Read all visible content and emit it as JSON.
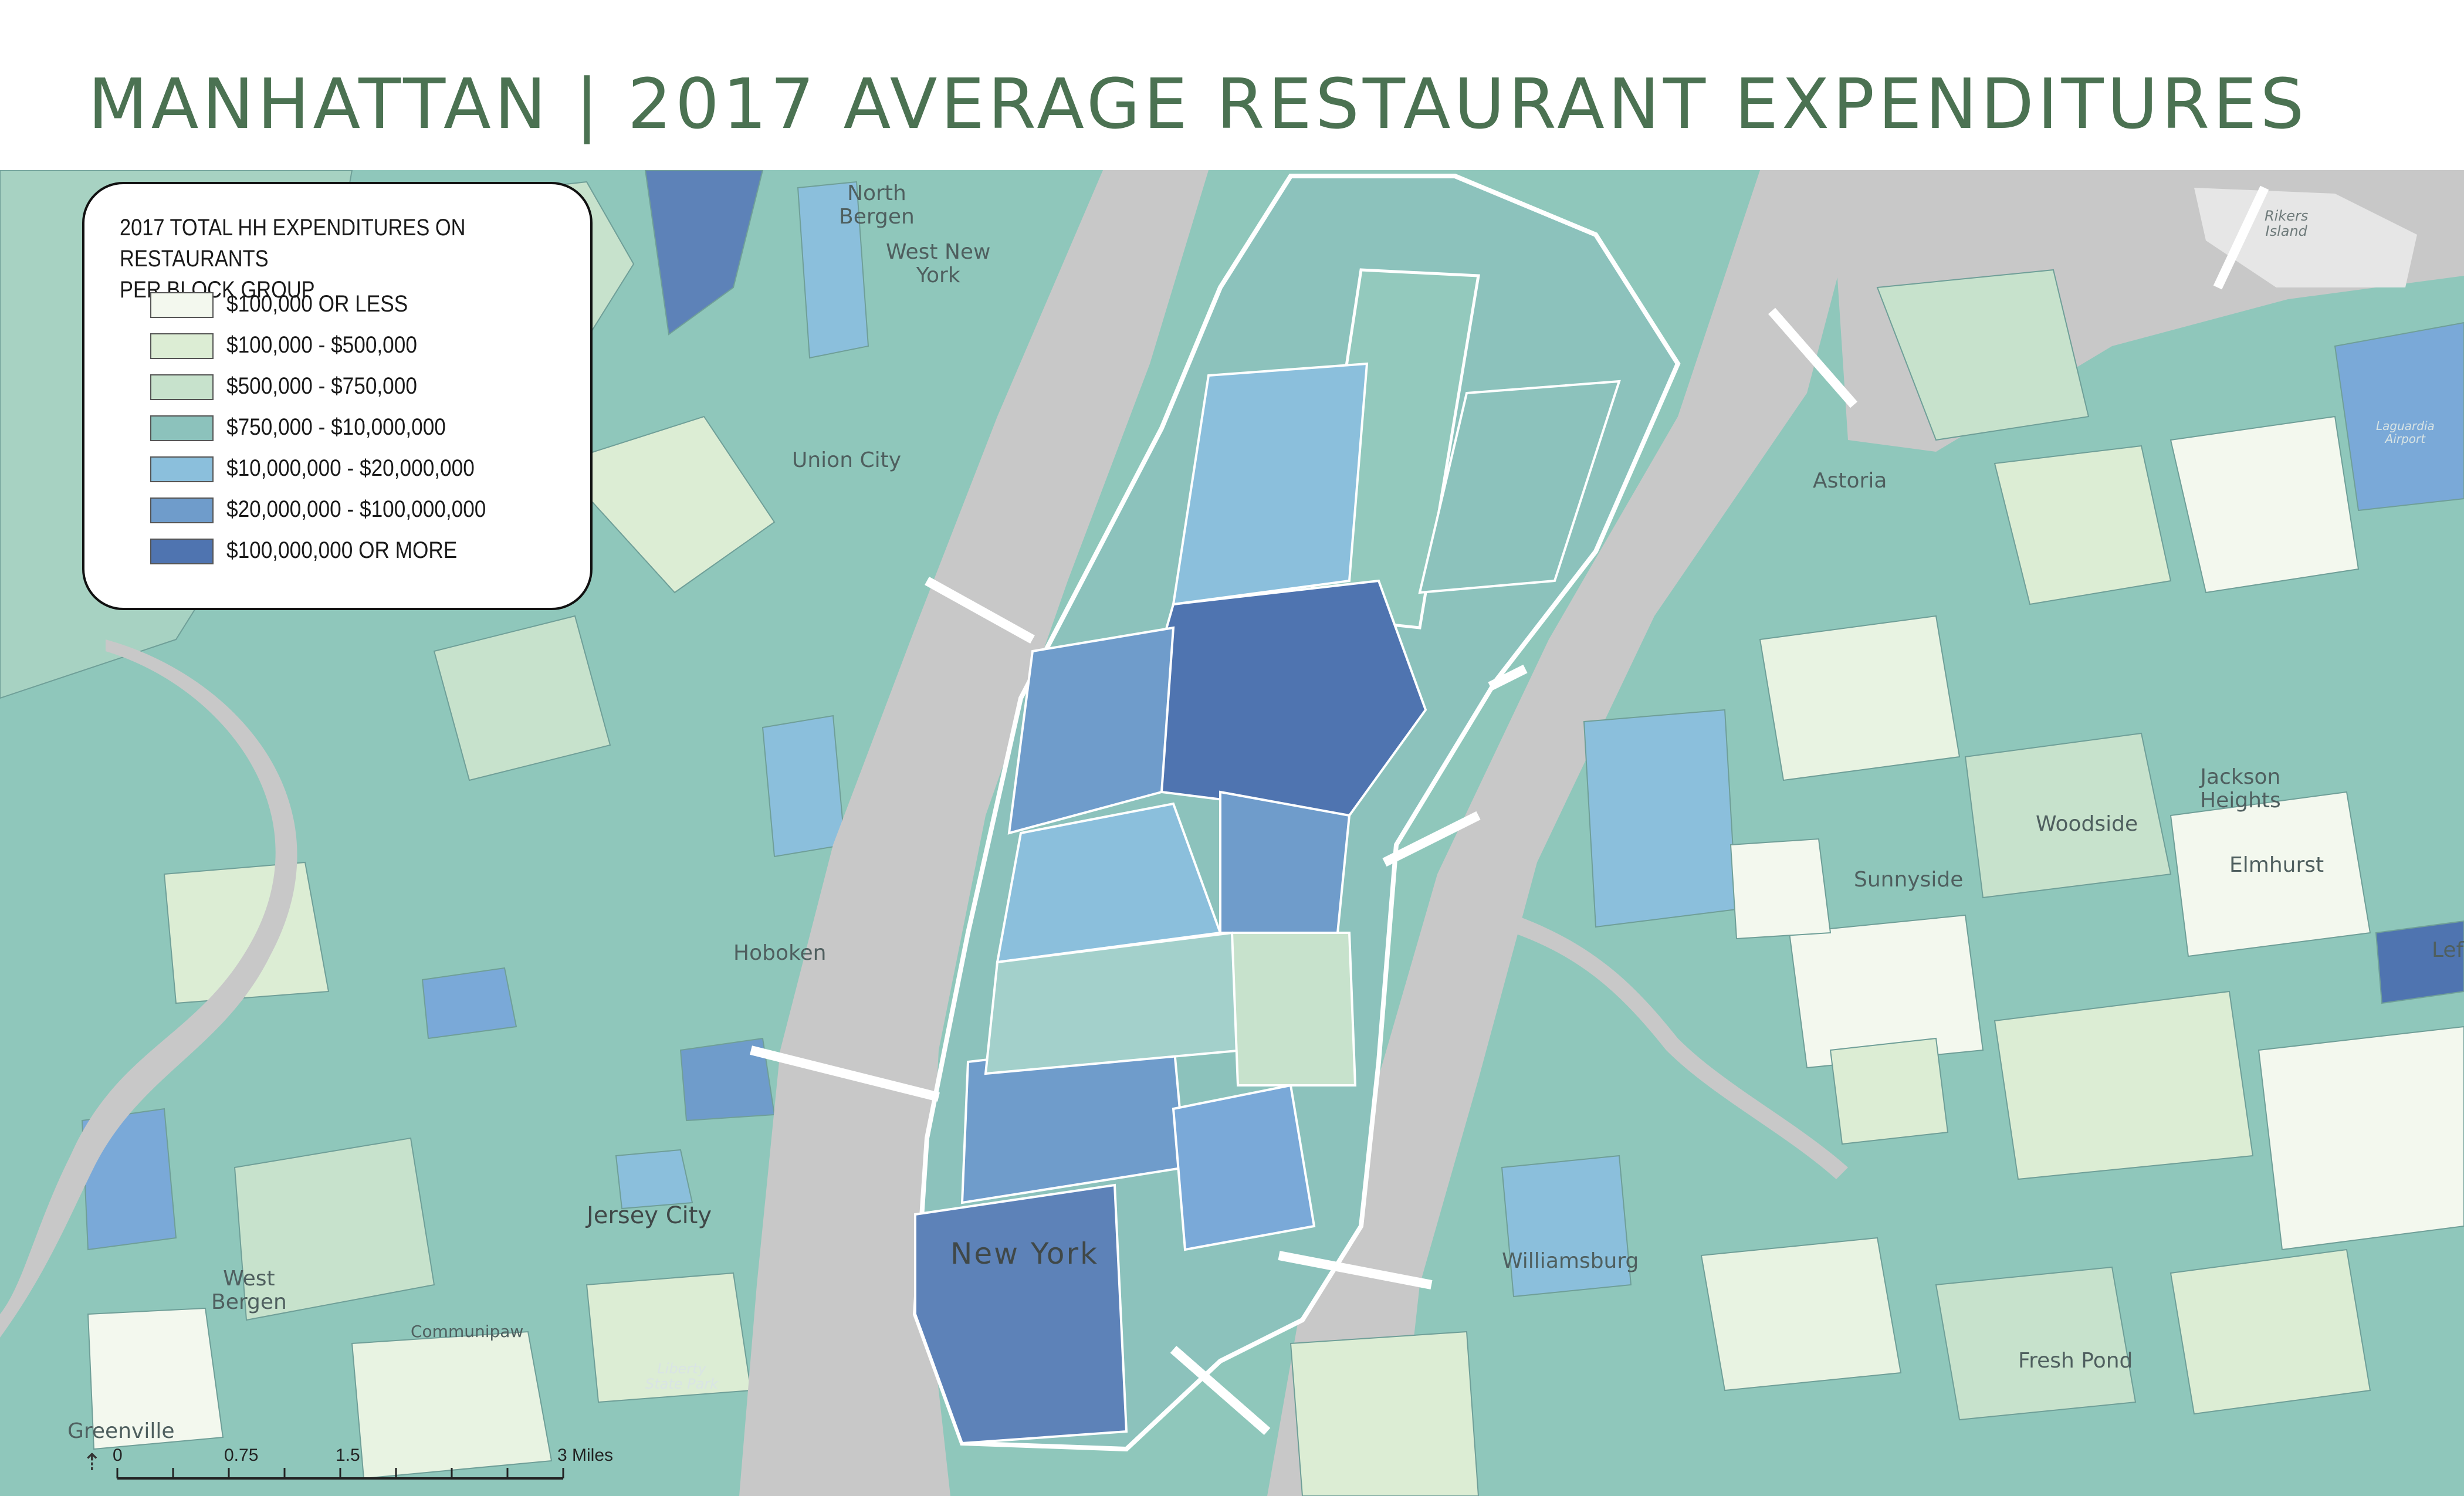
{
  "title": "MANHATTAN | 2017 AVERAGE RESTAURANT EXPENDITURES",
  "legend": {
    "title_line1": "2017 TOTAL HH EXPENDITURES ON RESTAURANTS",
    "title_line2": "PER BLOCK GROUP",
    "classes": [
      {
        "label": "$100,000 OR LESS",
        "color": "#f3f8ee"
      },
      {
        "label": "$100,000 - $500,000",
        "color": "#dcedd4"
      },
      {
        "label": "$500,000 - $750,000",
        "color": "#c7e2cc"
      },
      {
        "label": "$750,000 - $10,000,000",
        "color": "#8cc2bc"
      },
      {
        "label": "$10,000,000 - $20,000,000",
        "color": "#8bbfdc"
      },
      {
        "label": "$20,000,000 - $100,000,000",
        "color": "#6f9ccb"
      },
      {
        "label": "$100,000,000 OR MORE",
        "color": "#4f74b0"
      }
    ]
  },
  "places": {
    "north_bergen": "North\nBergen",
    "west_new_york": "West New\nYork",
    "union_city": "Union City",
    "hoboken": "Hoboken",
    "jersey_city": "Jersey City",
    "west_bergen": "West\nBergen",
    "communipaw": "Communipaw",
    "liberty_state_park": "Liberty\nState Park",
    "greenville": "Greenville",
    "new_york": "New York",
    "astoria": "Astoria",
    "sunnyside": "Sunnyside",
    "woodside": "Woodside",
    "jackson_heights": "Jackson\nHeights",
    "elmhurst": "Elmhurst",
    "williamsburg": "Williamsburg",
    "fresh_pond": "Fresh Pond",
    "rikers_island": "Rikers\nIsland",
    "laguardia_airport": "Laguardia\nAirport",
    "lef": "Lef"
  },
  "scalebar": {
    "labels": [
      "0",
      "0.75",
      "1.5",
      "3 Miles"
    ],
    "values": [
      0,
      0.75,
      1.5,
      3
    ]
  },
  "colors": {
    "water": "#c8c8c8",
    "base_fill": "#8fc7bb",
    "title_color": "#4b7252",
    "boundary": "#ffffff"
  }
}
